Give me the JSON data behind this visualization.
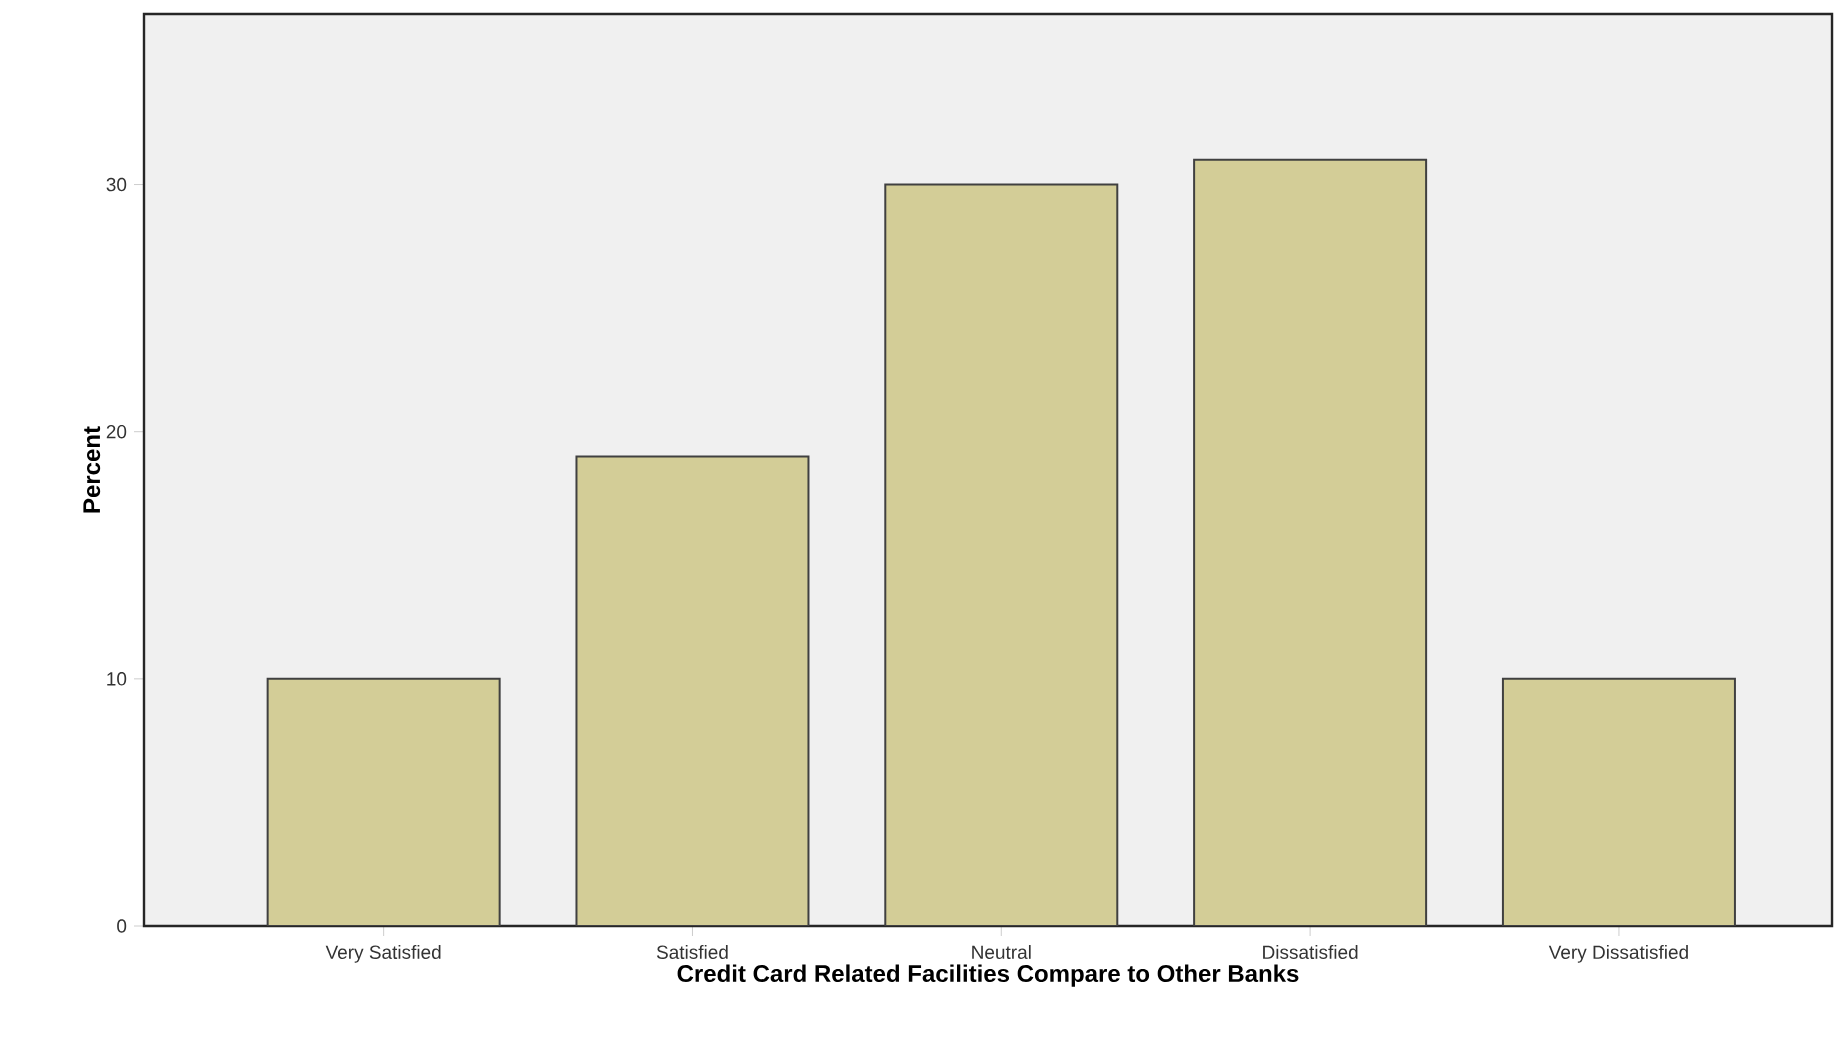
{
  "chart_data": {
    "type": "bar",
    "xlabel": "Credit Card Related Facilities Compare to Other Banks",
    "ylabel": "Percent",
    "categories": [
      "Very Satisfied",
      "Satisfied",
      "Neutral",
      "Dissatisfied",
      "Very Dissatisfied"
    ],
    "values": [
      10,
      19,
      30,
      31,
      10
    ],
    "color": "#d3cd97",
    "ylim": [
      0,
      36.9
    ],
    "yticks": [
      0,
      10,
      20,
      30
    ],
    "grid": false
  }
}
